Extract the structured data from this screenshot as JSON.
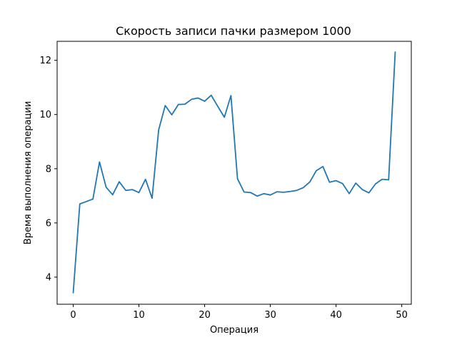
{
  "chart_data": {
    "type": "line",
    "title": "Скорость записи пачки размером 1000",
    "xlabel": "Операция",
    "ylabel": "Время выполнения операции",
    "xlim": [
      -2.45,
      51.45
    ],
    "ylim": [
      3.0,
      12.7
    ],
    "xticks": [
      0,
      10,
      20,
      30,
      40,
      50
    ],
    "yticks": [
      4,
      6,
      8,
      10,
      12
    ],
    "grid": false,
    "series": [
      {
        "color": "#1f77b4",
        "x": [
          0,
          1,
          2,
          3,
          4,
          5,
          6,
          7,
          8,
          9,
          10,
          11,
          12,
          13,
          14,
          15,
          16,
          17,
          18,
          19,
          20,
          21,
          22,
          23,
          24,
          25,
          26,
          27,
          28,
          29,
          30,
          31,
          32,
          33,
          34,
          35,
          36,
          37,
          38,
          39,
          40,
          41,
          42,
          43,
          44,
          45,
          46,
          47,
          48,
          49
        ],
        "y": [
          3.43,
          6.7,
          6.79,
          6.88,
          8.25,
          7.32,
          7.04,
          7.52,
          7.2,
          7.23,
          7.12,
          7.61,
          6.91,
          9.43,
          10.33,
          9.99,
          10.37,
          10.38,
          10.56,
          10.61,
          10.49,
          10.71,
          10.3,
          9.9,
          10.7,
          7.63,
          7.14,
          7.12,
          6.99,
          7.08,
          7.03,
          7.15,
          7.13,
          7.16,
          7.2,
          7.3,
          7.51,
          7.93,
          8.08,
          7.5,
          7.56,
          7.45,
          7.08,
          7.47,
          7.23,
          7.11,
          7.44,
          7.61,
          7.59,
          12.3
        ]
      }
    ]
  }
}
